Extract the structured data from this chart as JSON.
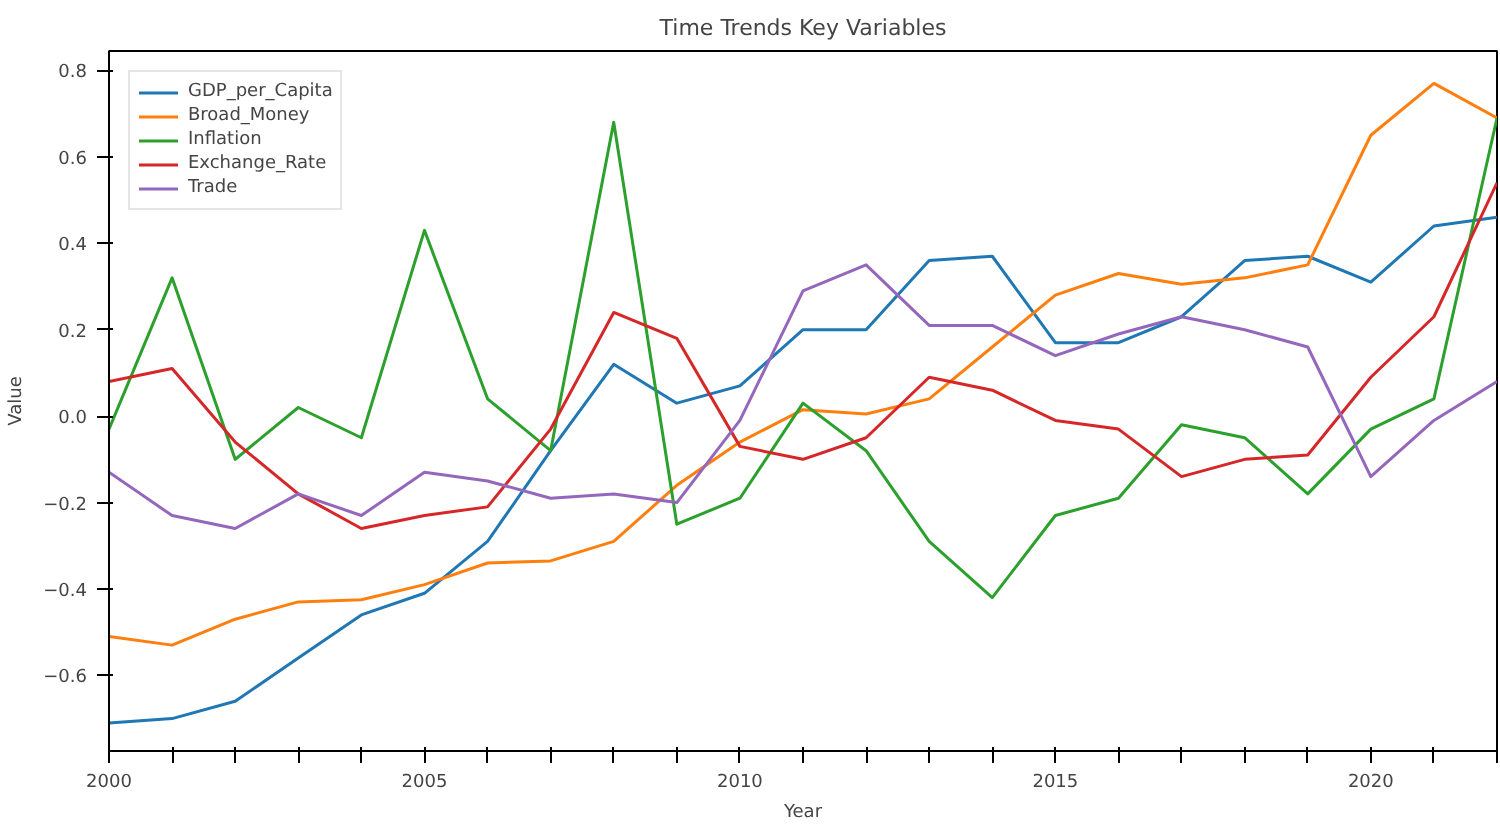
{
  "chart_data": {
    "type": "line",
    "title": "Time Trends Key Variables",
    "xlabel": "Year",
    "ylabel": "Value",
    "x": [
      2000,
      2001,
      2002,
      2003,
      2004,
      2005,
      2006,
      2007,
      2008,
      2009,
      2010,
      2011,
      2012,
      2013,
      2014,
      2015,
      2016,
      2017,
      2018,
      2019,
      2020,
      2021,
      2022
    ],
    "series": [
      {
        "name": "GDP_per_Capita",
        "color": "#1f77b4",
        "values": [
          -0.71,
          -0.7,
          -0.66,
          -0.56,
          -0.46,
          -0.41,
          -0.29,
          -0.08,
          0.12,
          0.03,
          0.07,
          0.2,
          0.2,
          0.36,
          0.37,
          0.17,
          0.17,
          0.23,
          0.36,
          0.37,
          0.31,
          0.44,
          0.46
        ]
      },
      {
        "name": "Broad_Money",
        "color": "#ff7f0e",
        "values": [
          -0.51,
          -0.53,
          -0.47,
          -0.43,
          -0.425,
          -0.39,
          -0.34,
          -0.335,
          -0.29,
          -0.16,
          -0.06,
          0.015,
          0.005,
          0.04,
          0.16,
          0.28,
          0.33,
          0.305,
          0.32,
          0.35,
          0.65,
          0.77,
          0.69
        ]
      },
      {
        "name": "Inflation",
        "color": "#2ca02c",
        "values": [
          -0.03,
          0.32,
          -0.1,
          0.02,
          -0.05,
          0.43,
          0.04,
          -0.08,
          0.68,
          -0.25,
          -0.19,
          0.03,
          -0.08,
          -0.29,
          -0.42,
          -0.23,
          -0.19,
          -0.02,
          -0.05,
          -0.18,
          -0.03,
          0.04,
          0.69
        ]
      },
      {
        "name": "Exchange_Rate",
        "color": "#d62728",
        "values": [
          0.08,
          0.11,
          -0.06,
          -0.18,
          -0.26,
          -0.23,
          -0.21,
          -0.03,
          0.24,
          0.18,
          -0.07,
          -0.1,
          -0.05,
          0.09,
          0.06,
          -0.01,
          -0.03,
          -0.14,
          -0.1,
          -0.09,
          0.09,
          0.23,
          0.54
        ]
      },
      {
        "name": "Trade",
        "color": "#9467bd",
        "values": [
          -0.13,
          -0.23,
          -0.26,
          -0.18,
          -0.23,
          -0.13,
          -0.15,
          -0.19,
          -0.18,
          -0.2,
          -0.01,
          0.29,
          0.35,
          0.21,
          0.21,
          0.14,
          0.19,
          0.23,
          0.2,
          0.16,
          -0.14,
          -0.01,
          0.08
        ]
      }
    ],
    "xlim": [
      2000,
      2022
    ],
    "ylim": [
      -0.775,
      0.845
    ],
    "xticks": [
      2000,
      {
        "value": 2001,
        "label": null
      },
      {
        "value": 2002,
        "label": null
      },
      {
        "value": 2003,
        "label": null
      },
      {
        "value": 2004,
        "label": null
      },
      2005,
      {
        "value": 2006,
        "label": null
      },
      {
        "value": 2007,
        "label": null
      },
      {
        "value": 2008,
        "label": null
      },
      {
        "value": 2009,
        "label": null
      },
      2010,
      {
        "value": 2011,
        "label": null
      },
      {
        "value": 2012,
        "label": null
      },
      {
        "value": 2013,
        "label": null
      },
      {
        "value": 2014,
        "label": null
      },
      2015,
      {
        "value": 2016,
        "label": null
      },
      {
        "value": 2017,
        "label": null
      },
      {
        "value": 2018,
        "label": null
      },
      {
        "value": 2019,
        "label": null
      },
      2020,
      {
        "value": 2021,
        "label": null
      },
      {
        "value": 2022,
        "label": null
      }
    ],
    "yticks": [
      {
        "value": -0.6,
        "label": "−0.6"
      },
      {
        "value": -0.4,
        "label": "−0.4"
      },
      {
        "value": -0.2,
        "label": "−0.2"
      },
      {
        "value": 0,
        "label": "0.0"
      },
      {
        "value": 0.2,
        "label": "0.2"
      },
      {
        "value": 0.4,
        "label": "0.4"
      },
      {
        "value": 0.6,
        "label": "0.6"
      },
      {
        "value": 0.8,
        "label": "0.8"
      }
    ],
    "legend": "top left",
    "grid": false,
    "line_style": "solid"
  }
}
